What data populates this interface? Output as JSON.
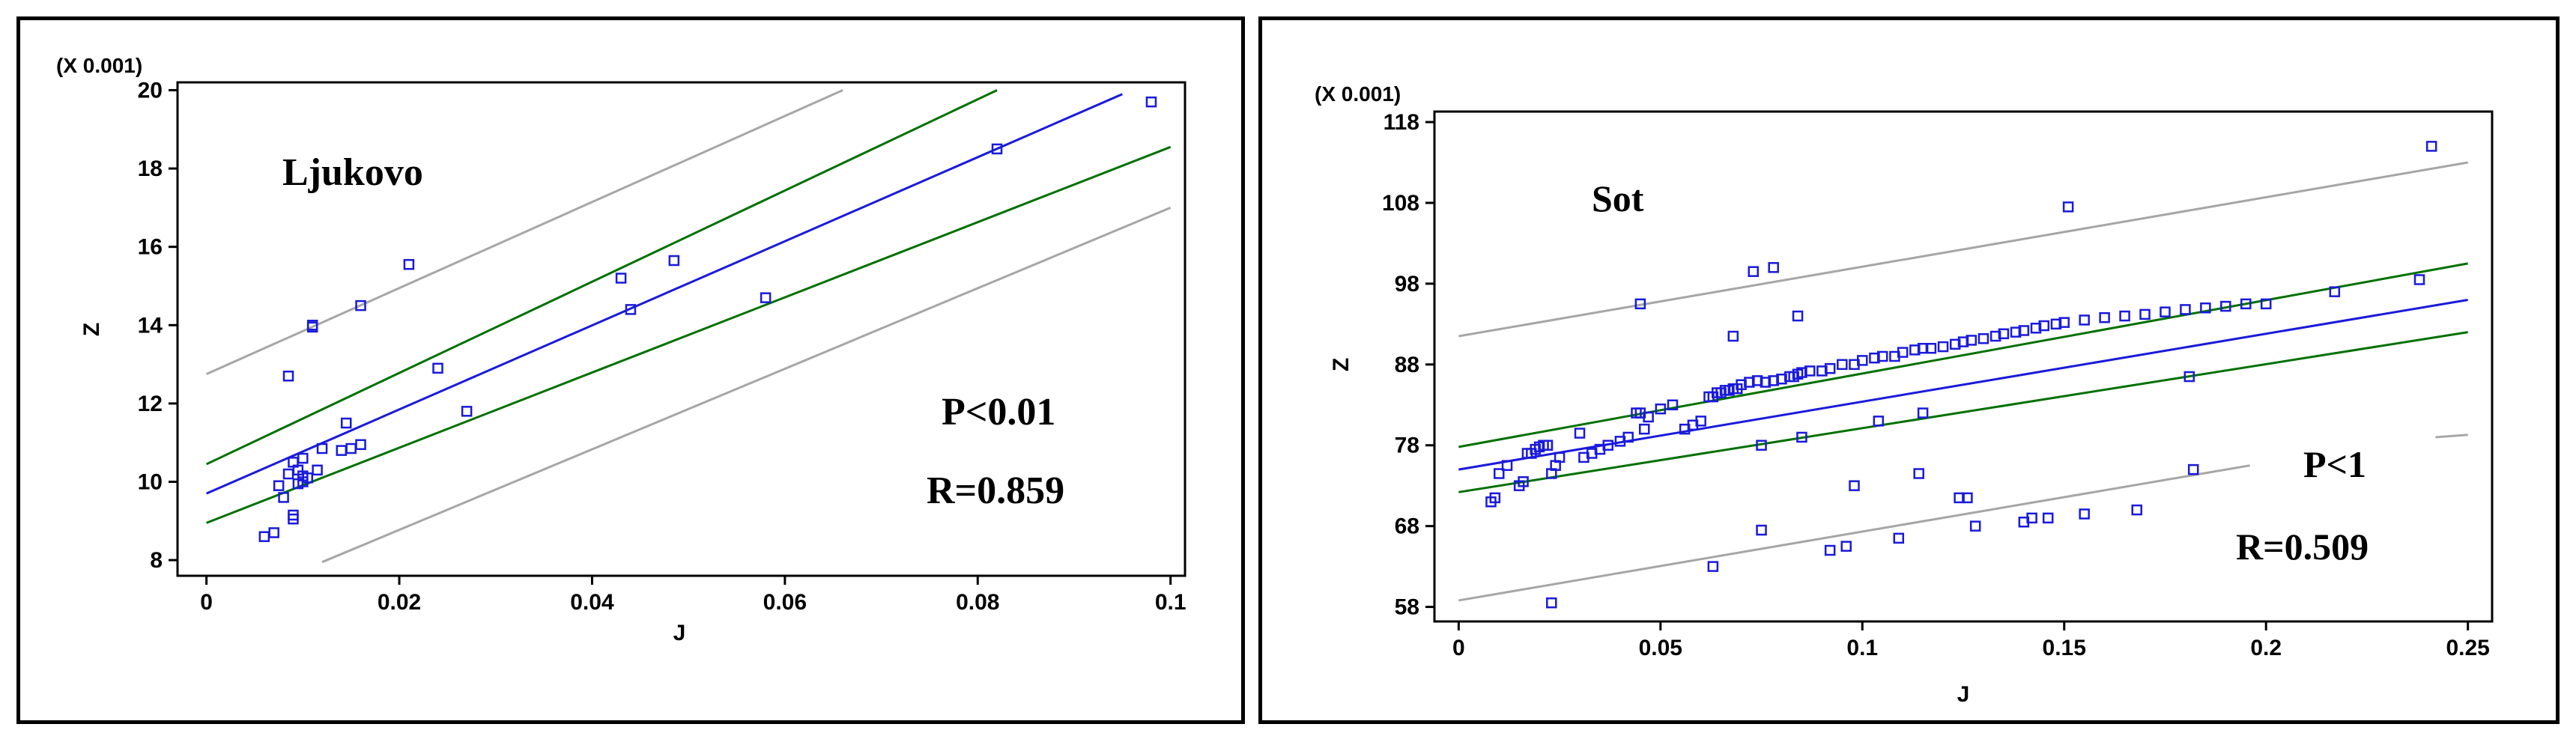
{
  "chart_data": [
    {
      "type": "scatter",
      "title": "Ljukovo",
      "xlabel": "J",
      "ylabel": "Z",
      "y_multiplier_label": "(X 0.001)",
      "xlim": [
        -0.003,
        0.1015
      ],
      "ylim": [
        7.6,
        20.2
      ],
      "x_ticks": [
        0,
        0.02,
        0.04,
        0.06,
        0.08,
        0.1
      ],
      "x_tick_labels": [
        "0",
        "0.02",
        "0.04",
        "0.06",
        "0.08",
        "0.1"
      ],
      "y_ticks": [
        8,
        10,
        12,
        14,
        16,
        18,
        20
      ],
      "y_tick_labels": [
        "8",
        "10",
        "12",
        "14",
        "16",
        "18",
        "20"
      ],
      "annotations": [
        "P<0.01",
        "R=0.859"
      ],
      "colors": {
        "points": "#1a1adb",
        "fit": "#1a1adb",
        "confidence": "#007000",
        "prediction": "#a6a6a6"
      },
      "fit_line": {
        "x": [
          0,
          0.095
        ],
        "y": [
          9.7,
          19.9
        ]
      },
      "confidence_upper": {
        "x": [
          0,
          0.082
        ],
        "y": [
          10.45,
          20.0
        ]
      },
      "confidence_lower": {
        "x": [
          0,
          0.1
        ],
        "y": [
          8.95,
          18.55
        ]
      },
      "prediction_upper": {
        "x": [
          0,
          0.066
        ],
        "y": [
          12.75,
          20.0
        ]
      },
      "prediction_lower": {
        "x": [
          0.012,
          0.1
        ],
        "y": [
          7.95,
          17.0
        ]
      },
      "x": [
        0.006,
        0.007,
        0.0075,
        0.008,
        0.0085,
        0.0085,
        0.009,
        0.009,
        0.009,
        0.0095,
        0.0095,
        0.01,
        0.01,
        0.01,
        0.0105,
        0.011,
        0.011,
        0.0115,
        0.012,
        0.014,
        0.0145,
        0.015,
        0.016,
        0.016,
        0.021,
        0.024,
        0.027,
        0.043,
        0.044,
        0.0485,
        0.058,
        0.082,
        0.098
      ],
      "y": [
        8.6,
        8.7,
        9.9,
        9.6,
        10.2,
        12.7,
        9.05,
        9.15,
        10.5,
        10.3,
        9.95,
        10.6,
        10.0,
        10.15,
        10.1,
        13.95,
        14.0,
        10.3,
        10.85,
        10.8,
        11.5,
        10.85,
        10.95,
        14.5,
        15.55,
        12.9,
        11.8,
        15.2,
        14.4,
        15.65,
        14.7,
        18.5,
        19.7
      ]
    },
    {
      "type": "scatter",
      "title": "Sot",
      "xlabel": "J",
      "ylabel": "Z",
      "y_multiplier_label": "(X 0.001)",
      "xlim": [
        -0.006,
        0.256
      ],
      "ylim": [
        56.2,
        119.3
      ],
      "x_ticks": [
        0,
        0.05,
        0.1,
        0.15,
        0.2,
        0.25
      ],
      "x_tick_labels": [
        "0",
        "0.05",
        "0.1",
        "0.15",
        "0.2",
        "0.25"
      ],
      "y_ticks": [
        58,
        68,
        78,
        88,
        98,
        108,
        118
      ],
      "y_tick_labels": [
        "58",
        "68",
        "78",
        "88",
        "98",
        "108",
        "118"
      ],
      "annotations": [
        "P<1",
        "R=0.509"
      ],
      "colors": {
        "points": "#1a1adb",
        "fit": "#1a1adb",
        "confidence": "#007000",
        "prediction": "#a6a6a6"
      },
      "fit_line": {
        "x": [
          0,
          0.25
        ],
        "y": [
          75.0,
          96.0
        ]
      },
      "confidence_upper": {
        "x": [
          0,
          0.25
        ],
        "y": [
          77.8,
          100.5
        ]
      },
      "confidence_lower": {
        "x": [
          0,
          0.25
        ],
        "y": [
          72.2,
          92.0
        ]
      },
      "prediction_upper": {
        "x": [
          0,
          0.25
        ],
        "y": [
          91.5,
          113.0
        ]
      },
      "prediction_lower": {
        "x": [
          0,
          0.196
        ],
        "y": [
          58.8,
          75.5
        ]
      },
      "prediction_lower_tail": {
        "x": [
          0.242,
          0.25
        ],
        "y": [
          79.0,
          79.3
        ]
      },
      "x": [
        0.008,
        0.009,
        0.01,
        0.012,
        0.015,
        0.016,
        0.017,
        0.018,
        0.019,
        0.02,
        0.021,
        0.022,
        0.022,
        0.023,
        0.024,
        0.025,
        0.03,
        0.031,
        0.033,
        0.035,
        0.037,
        0.04,
        0.042,
        0.044,
        0.045,
        0.046,
        0.047,
        0.05,
        0.053,
        0.056,
        0.058,
        0.06,
        0.062,
        0.063,
        0.064,
        0.065,
        0.066,
        0.067,
        0.068,
        0.069,
        0.07,
        0.072,
        0.074,
        0.075,
        0.076,
        0.078,
        0.08,
        0.082,
        0.083,
        0.084,
        0.085,
        0.087,
        0.09,
        0.092,
        0.095,
        0.098,
        0.1,
        0.103,
        0.105,
        0.108,
        0.11,
        0.113,
        0.115,
        0.117,
        0.12,
        0.123,
        0.125,
        0.127,
        0.13,
        0.133,
        0.135,
        0.138,
        0.14,
        0.143,
        0.145,
        0.148,
        0.15,
        0.155,
        0.16,
        0.165,
        0.17,
        0.175,
        0.18,
        0.185,
        0.19,
        0.195,
        0.2,
        0.217,
        0.238,
        0.241,
        0.023,
        0.045,
        0.063,
        0.068,
        0.073,
        0.075,
        0.078,
        0.084,
        0.085,
        0.092,
        0.096,
        0.098,
        0.104,
        0.109,
        0.114,
        0.115,
        0.124,
        0.126,
        0.128,
        0.14,
        0.142,
        0.146,
        0.151,
        0.155,
        0.168,
        0.181,
        0.182
      ],
      "y": [
        71.0,
        71.5,
        74.5,
        75.5,
        73.0,
        73.5,
        77.0,
        77.0,
        77.5,
        77.8,
        78.0,
        78.0,
        78.0,
        74.5,
        75.5,
        76.5,
        79.5,
        76.5,
        77.0,
        77.5,
        78.0,
        78.5,
        79.0,
        82.0,
        82.0,
        80.0,
        81.5,
        82.5,
        83.0,
        80.0,
        80.5,
        81.0,
        84.0,
        84.0,
        84.5,
        84.5,
        84.8,
        84.8,
        85.0,
        85.0,
        85.5,
        85.8,
        86.0,
        78.0,
        85.8,
        86.0,
        86.2,
        86.5,
        86.5,
        86.8,
        87.0,
        87.2,
        87.2,
        87.5,
        88.0,
        88.0,
        88.5,
        88.8,
        89.0,
        89.0,
        89.5,
        89.8,
        90.0,
        90.0,
        90.2,
        90.5,
        90.8,
        91.0,
        91.2,
        91.5,
        91.8,
        92.0,
        92.2,
        92.5,
        92.8,
        93.0,
        93.2,
        93.5,
        93.8,
        94.0,
        94.2,
        94.5,
        94.8,
        95.0,
        95.2,
        95.5,
        95.5,
        97.0,
        98.5,
        115.0,
        58.5,
        95.5,
        63.0,
        91.5,
        99.5,
        67.5,
        100.0,
        94.0,
        79.0,
        65.0,
        65.5,
        73.0,
        81.0,
        66.5,
        74.5,
        82.0,
        71.5,
        71.5,
        68.0,
        68.5,
        69.0,
        69.0,
        107.5,
        69.5,
        70.0,
        86.5,
        75.0
      ]
    }
  ]
}
